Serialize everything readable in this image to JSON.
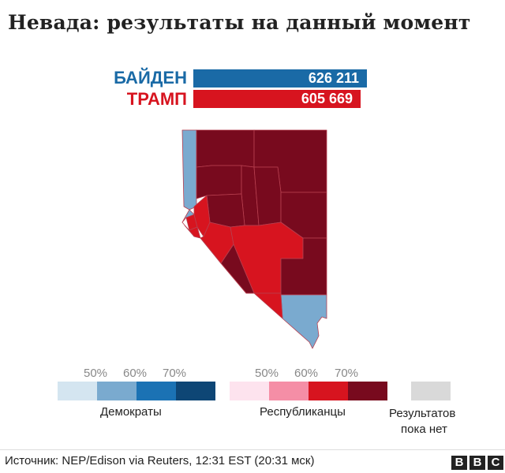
{
  "title": "Невада: результаты на данный момент",
  "candidates": [
    {
      "name": "БАЙДЕН",
      "votes": "626 211",
      "color": "#1a6aa6"
    },
    {
      "name": "ТРАМП",
      "votes": "605 669",
      "color": "#d7141f"
    }
  ],
  "legend": {
    "dem_label": "Демократы",
    "rep_label": "Республиканцы",
    "none_label_line1": "Результатов",
    "none_label_line2": "пока нет",
    "pct": [
      "50%",
      "60%",
      "70%"
    ],
    "dem_colors": [
      "#d4e5f0",
      "#7aaacf",
      "#1b72b4",
      "#0e4675"
    ],
    "rep_colors": [
      "#fde3ee",
      "#f58ea6",
      "#d7141f",
      "#780a1e"
    ],
    "none_color": "#d9d9d9"
  },
  "source": "Источник: NEP/Edison via Reuters, 12:31 EST (20:31 мск)",
  "logo": [
    "B",
    "B",
    "C"
  ]
}
